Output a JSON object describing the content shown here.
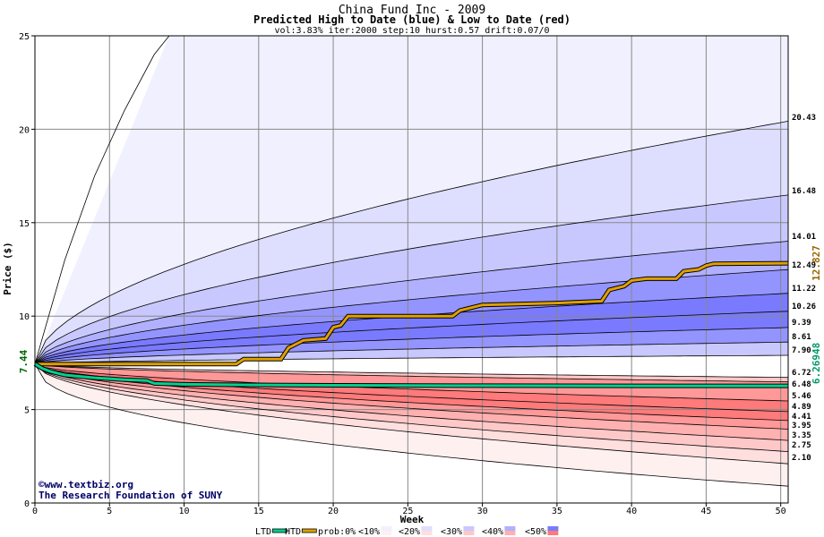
{
  "title": "China Fund Inc - 2009",
  "subtitle": "Predicted High to Date (blue) &  Low to Date (red)",
  "params": "vol:3.83% iter:2000 step:10 hurst:0.57 drift:0.07/0",
  "credit_line1": "©www.textbiz.org",
  "credit_line2": "The Research Foundation of SUNY",
  "colors": {
    "blue_bands": [
      "#f0f0ff",
      "#dedeff",
      "#c8c8ff",
      "#b0b0ff",
      "#9494ff",
      "#7a7aff"
    ],
    "red_bands": [
      "#fff0f0",
      "#ffdede",
      "#ffc8c8",
      "#ffb0b0",
      "#ff9898",
      "#ff7a7a"
    ],
    "htd_line": "#e0a000",
    "ltd_line": "#00d090"
  },
  "chart_data": {
    "type": "area",
    "xlabel": "Week",
    "ylabel": "Price ($)",
    "xlim": [
      0,
      50.5
    ],
    "ylim": [
      0,
      25
    ],
    "x_ticks": [
      0,
      5,
      10,
      15,
      20,
      25,
      30,
      35,
      40,
      45,
      50
    ],
    "y_ticks": [
      0,
      5,
      10,
      15,
      20,
      25
    ],
    "start_value": "7.44",
    "high_quantile_endpoints": [
      20.43,
      16.48,
      14.01,
      12.49,
      11.22,
      10.26,
      9.39,
      8.61,
      7.9
    ],
    "low_quantile_endpoints": [
      6.72,
      6.48,
      5.46,
      4.89,
      4.41,
      3.95,
      3.35,
      2.75,
      2.1
    ],
    "right_labels": [
      "20.43",
      "16.48",
      "14.01",
      "12.49",
      "11.22",
      "10.26",
      "9.39",
      "8.61",
      "7.90",
      "6.72",
      "6.48",
      "5.46",
      "4.89",
      "4.41",
      "3.95",
      "3.35",
      "2.75",
      "2.10"
    ],
    "htd_value": "12.827",
    "ltd_value": "6.26948",
    "htd_path": [
      [
        0,
        7.44
      ],
      [
        13.5,
        7.44
      ],
      [
        14,
        7.7
      ],
      [
        16.5,
        7.7
      ],
      [
        17,
        8.3
      ],
      [
        18,
        8.7
      ],
      [
        19.5,
        8.8
      ],
      [
        20,
        9.4
      ],
      [
        20.5,
        9.5
      ],
      [
        21,
        10.0
      ],
      [
        21.5,
        10.0
      ],
      [
        28,
        10.0
      ],
      [
        28.5,
        10.3
      ],
      [
        29,
        10.4
      ],
      [
        30,
        10.6
      ],
      [
        35,
        10.7
      ],
      [
        38,
        10.8
      ],
      [
        38.5,
        11.4
      ],
      [
        39.5,
        11.6
      ],
      [
        40,
        11.9
      ],
      [
        41,
        12.0
      ],
      [
        43,
        12.0
      ],
      [
        43.5,
        12.4
      ],
      [
        44.5,
        12.5
      ],
      [
        45,
        12.7
      ],
      [
        45.5,
        12.8
      ],
      [
        50.5,
        12.83
      ]
    ],
    "ltd_path": [
      [
        0,
        7.44
      ],
      [
        0.5,
        7.2
      ],
      [
        1,
        7.05
      ],
      [
        1.5,
        6.95
      ],
      [
        2,
        6.85
      ],
      [
        4,
        6.7
      ],
      [
        6,
        6.6
      ],
      [
        7.5,
        6.55
      ],
      [
        8,
        6.4
      ],
      [
        10,
        6.35
      ],
      [
        14,
        6.32
      ],
      [
        20,
        6.3
      ],
      [
        30,
        6.28
      ],
      [
        40,
        6.27
      ],
      [
        50.5,
        6.27
      ]
    ],
    "legend": [
      "LTD",
      "HTD",
      "prob:0%",
      "<10%",
      "<20%",
      "<30%",
      "<40%",
      "<50%"
    ]
  }
}
